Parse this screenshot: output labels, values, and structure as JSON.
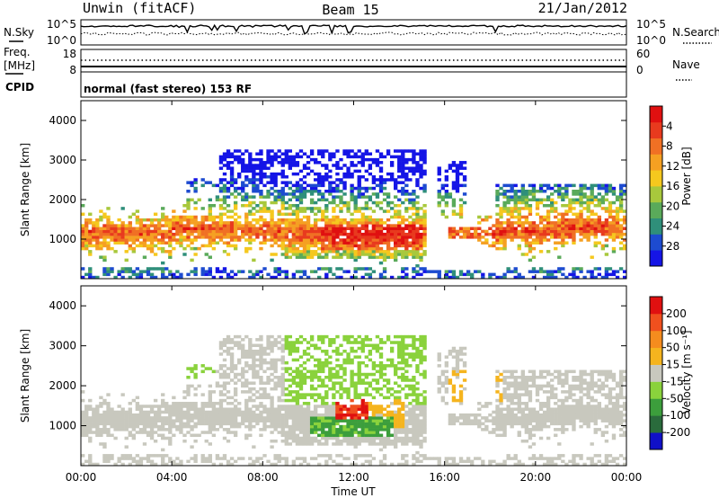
{
  "header": {
    "radar": "Unwin (fitACF)",
    "beam": "Beam 15",
    "date": "21/Jan/2012"
  },
  "noise_panel": {
    "left_label": "N.Sky",
    "right_label": "N.Search",
    "ticks_left": [
      "10^5",
      "10^0"
    ],
    "ticks_right": [
      "10^5",
      "10^0"
    ]
  },
  "freq_panel": {
    "left_label_1": "Freq.",
    "left_label_2": "[MHz]",
    "right_label": "Nave",
    "ticks_left": [
      "18",
      "8"
    ],
    "ticks_right": [
      "60",
      "0"
    ]
  },
  "cpid_panel": {
    "label": "CPID",
    "text": "normal (fast stereo) 153 RF"
  },
  "x_axis": {
    "label": "Time UT",
    "ticks": [
      "00:00",
      "04:00",
      "08:00",
      "12:00",
      "16:00",
      "20:00",
      "00:00"
    ]
  },
  "chart_data": [
    {
      "type": "heatmap",
      "title": "",
      "xlabel": "Time UT",
      "ylabel": "Slant Range [km]",
      "xlim": [
        0,
        24
      ],
      "ylim": [
        0,
        4500
      ],
      "y_ticks": [
        "1000",
        "2000",
        "3000",
        "4000"
      ],
      "colorbar": {
        "label": "Power [dB]",
        "ticks": [
          "4",
          "8",
          "12",
          "16",
          "20",
          "24",
          "28"
        ],
        "range": [
          0,
          30
        ],
        "colors": [
          "#1515e6",
          "#1d4bd0",
          "#2f8f7a",
          "#5aaa5a",
          "#a8c83c",
          "#f5c81e",
          "#f5a022",
          "#f07024",
          "#e83a1e",
          "#e01010"
        ]
      }
    },
    {
      "type": "heatmap",
      "title": "",
      "xlabel": "Time UT",
      "ylabel": "Slant Range [km]",
      "xlim": [
        0,
        24
      ],
      "ylim": [
        0,
        4500
      ],
      "y_ticks": [
        "1000",
        "2000",
        "3000",
        "4000"
      ],
      "colorbar": {
        "label": "Velocity [m s⁻¹]",
        "ticks": [
          "200",
          "100",
          "50",
          "15",
          "-15",
          "-50",
          "-100",
          "-200"
        ],
        "range": [
          -250,
          250
        ],
        "colors": [
          "#1010c8",
          "#2a6b3c",
          "#3c9e3c",
          "#8ad23c",
          "#c8c8be",
          "#f5b41e",
          "#f58c1e",
          "#f0501e",
          "#e01010"
        ]
      }
    }
  ]
}
